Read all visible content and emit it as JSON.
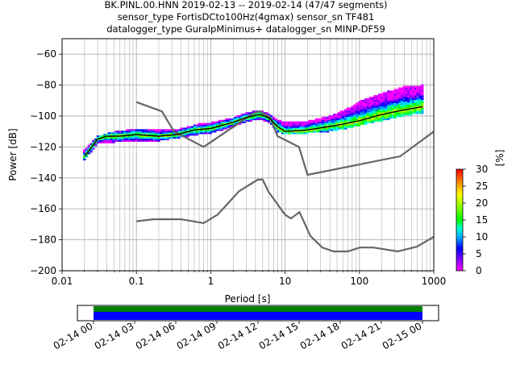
{
  "chart_data": {
    "type": "heatmap",
    "title_lines": [
      "BK.PINL.00.HNN   2019-02-13 -- 2019-02-14  (47/47 segments)",
      "sensor_type FortisDCto100Hz(4gmax) sensor_sn TF481",
      "datalogger_type GuralpMinimus+ datalogger_sn MINP-DF59"
    ],
    "xlabel": "Period [s]",
    "ylabel": "Power [dB]",
    "x_scale": "log",
    "xlim": [
      0.01,
      1000
    ],
    "ylim": [
      -200,
      -50
    ],
    "x_ticks": [
      0.01,
      0.1,
      1,
      10,
      100,
      1000
    ],
    "x_tick_labels": [
      "0.01",
      "0.1",
      "1",
      "10",
      "100",
      "1000"
    ],
    "y_ticks": [
      -200,
      -180,
      -160,
      -140,
      -120,
      -100,
      -80,
      -60
    ],
    "y_tick_labels": [
      "−200",
      "−180",
      "−160",
      "−140",
      "−120",
      "−100",
      "−80",
      "−60"
    ],
    "grid": true,
    "colorbar": {
      "label": "[%]",
      "range": [
        0,
        30
      ],
      "ticks": [
        0,
        5,
        10,
        15,
        20,
        25,
        30
      ],
      "tick_labels": [
        "0",
        "5",
        "10",
        "15",
        "20",
        "25",
        "30"
      ]
    },
    "noise_model_high": [
      [
        0.1,
        -91
      ],
      [
        0.22,
        -97
      ],
      [
        0.32,
        -110
      ],
      [
        0.8,
        -120
      ],
      [
        3.8,
        -98
      ],
      [
        4.6,
        -97
      ],
      [
        6.3,
        -101
      ],
      [
        7.9,
        -113
      ],
      [
        15.4,
        -120
      ],
      [
        20,
        -138
      ],
      [
        354.8,
        -126
      ],
      [
        1000,
        -110
      ]
    ],
    "noise_model_low": [
      [
        0.1,
        -168
      ],
      [
        0.17,
        -166.7
      ],
      [
        0.4,
        -166.7
      ],
      [
        0.8,
        -169.2
      ],
      [
        1.24,
        -163.7
      ],
      [
        2.4,
        -148.6
      ],
      [
        4.3,
        -141.1
      ],
      [
        5,
        -141.1
      ],
      [
        6,
        -149
      ],
      [
        10,
        -163.8
      ],
      [
        12,
        -166.2
      ],
      [
        15.6,
        -162.1
      ],
      [
        21.9,
        -177.5
      ],
      [
        31.6,
        -185
      ],
      [
        45,
        -187.5
      ],
      [
        70,
        -187.5
      ],
      [
        101,
        -185
      ],
      [
        154,
        -185
      ],
      [
        328,
        -187.5
      ],
      [
        600,
        -184.4
      ],
      [
        1000,
        -178
      ]
    ],
    "mode_curve": [
      [
        0.02,
        -126
      ],
      [
        0.025,
        -120
      ],
      [
        0.03,
        -115
      ],
      [
        0.04,
        -113
      ],
      [
        0.06,
        -113
      ],
      [
        0.1,
        -112
      ],
      [
        0.2,
        -113
      ],
      [
        0.35,
        -112
      ],
      [
        0.6,
        -109
      ],
      [
        1,
        -108
      ],
      [
        2,
        -104
      ],
      [
        3,
        -101
      ],
      [
        4.5,
        -99
      ],
      [
        6,
        -101
      ],
      [
        8,
        -107
      ],
      [
        10,
        -110
      ],
      [
        20,
        -109
      ],
      [
        50,
        -106
      ],
      [
        100,
        -103
      ],
      [
        200,
        -99
      ],
      [
        400,
        -96
      ],
      [
        700,
        -94
      ]
    ],
    "psd_band": [
      [
        0.02,
        -128,
        -122
      ],
      [
        0.025,
        -123,
        -117
      ],
      [
        0.03,
        -118,
        -113
      ],
      [
        0.05,
        -117,
        -110
      ],
      [
        0.1,
        -116,
        -108
      ],
      [
        0.2,
        -116,
        -109
      ],
      [
        0.4,
        -114,
        -108
      ],
      [
        0.7,
        -112,
        -105
      ],
      [
        1,
        -111,
        -104
      ],
      [
        2,
        -107,
        -101
      ],
      [
        3,
        -104,
        -98
      ],
      [
        4.5,
        -102,
        -96
      ],
      [
        6,
        -104,
        -98
      ],
      [
        8,
        -110,
        -102
      ],
      [
        10,
        -112,
        -104
      ],
      [
        20,
        -111,
        -103
      ],
      [
        40,
        -110,
        -100
      ],
      [
        70,
        -108,
        -95
      ],
      [
        100,
        -106,
        -90
      ],
      [
        200,
        -103,
        -85
      ],
      [
        400,
        -100,
        -81
      ],
      [
        700,
        -98,
        -80
      ]
    ],
    "timeline": {
      "tick_labels": [
        "02-14 00",
        "02-14 03",
        "02-14 06",
        "02-14 09",
        "02-14 12",
        "02-14 15",
        "02-14 18",
        "02-14 21",
        "02-15 00"
      ],
      "span_hours": [
        0,
        24
      ],
      "coverage_hours": [
        0,
        24
      ]
    },
    "colors": {
      "noise_model": "#666666",
      "mode_line": "#000000",
      "coverage_top": "#008000",
      "coverage_bottom": "#0000ff",
      "grid": "#b0b0b0"
    }
  }
}
